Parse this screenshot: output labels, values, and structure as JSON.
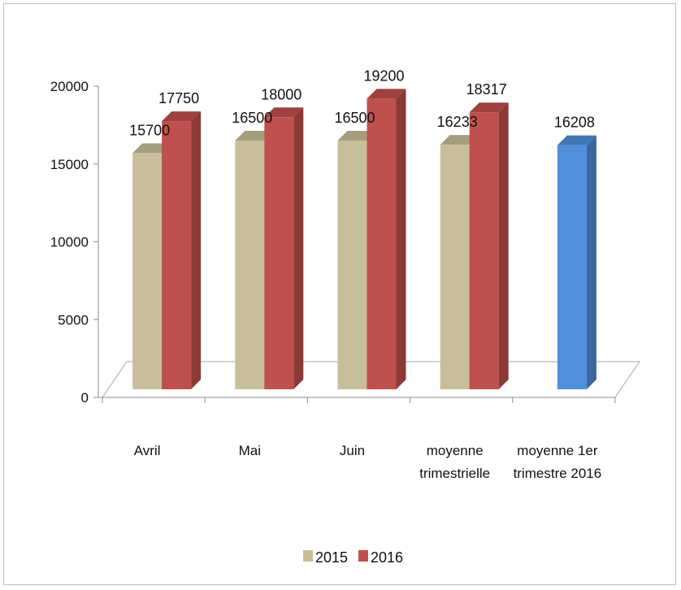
{
  "chart_data": {
    "type": "bar",
    "title": "",
    "xlabel": "",
    "ylabel": "",
    "categories": [
      [
        "Avril"
      ],
      [
        "Mai"
      ],
      [
        "Juin"
      ],
      [
        "moyenne",
        "trimestrielle"
      ],
      [
        "moyenne 1er",
        "trimestre 2016"
      ]
    ],
    "series": [
      {
        "name": "2015",
        "color": "#c8bf9a",
        "values": [
          15700,
          16500,
          16500,
          16233,
          null
        ]
      },
      {
        "name": "2016",
        "color": "#c0504d",
        "values": [
          17750,
          18000,
          19200,
          18317,
          null
        ]
      },
      {
        "name": "",
        "color": "#4f8fdc",
        "values": [
          null,
          null,
          null,
          null,
          16208
        ]
      }
    ],
    "ylim": [
      0,
      20000
    ],
    "yticks": [
      0,
      5000,
      10000,
      15000,
      20000
    ],
    "grid": false,
    "legend": {
      "position": "bottom",
      "entries": [
        "2015",
        "2016"
      ]
    },
    "style": "3d-column"
  }
}
